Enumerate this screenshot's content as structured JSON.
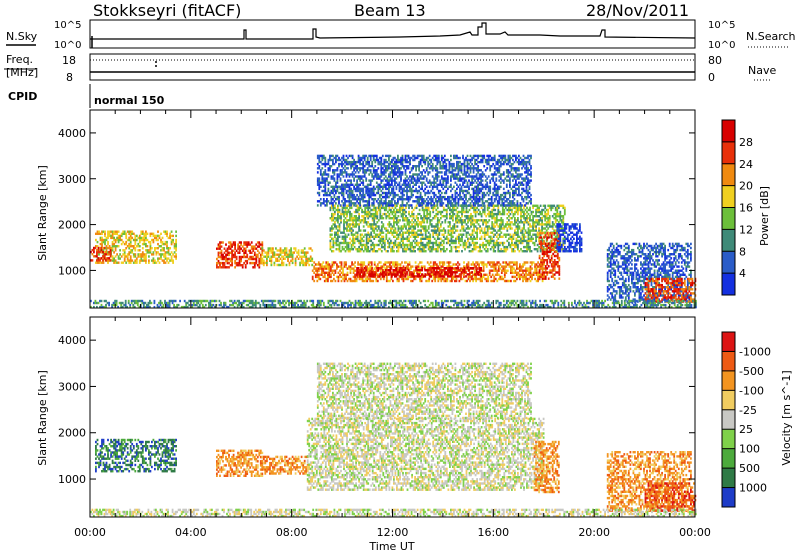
{
  "header": {
    "station": "Stokkseyri (fitACF)",
    "beam": "Beam 13",
    "date": "28/Nov/2011"
  },
  "panel_labels": {
    "nsky": "N.Sky",
    "nsearch": "N.Search",
    "freq_line1": "Freq.",
    "freq_line2": "[MHz]",
    "nave": "Nave",
    "cpid_label": "CPID",
    "cpid_value": "normal 150",
    "nsky_ticks": [
      "10^5",
      "10^0"
    ],
    "nsearch_ticks": [
      "10^5",
      "10^0"
    ],
    "freq_ticks": [
      "18",
      "8"
    ],
    "nave_ticks": [
      "80",
      "0"
    ]
  },
  "chart_data": [
    {
      "type": "heatmap",
      "name": "power",
      "xlabel": "Time UT",
      "ylabel": "Slant Range [km]",
      "x_ticks": [
        "00:00",
        "04:00",
        "08:00",
        "12:00",
        "16:00",
        "20:00",
        "00:00"
      ],
      "xlim_hours": [
        0,
        24
      ],
      "ylim_km": [
        180,
        4500
      ],
      "y_ticks": [
        "1000",
        "2000",
        "3000",
        "4000"
      ],
      "y_tick_values": [
        1000,
        2000,
        3000,
        4000
      ],
      "colorbar": {
        "label": "Power [dB]",
        "tick_labels": [
          "4",
          "8",
          "12",
          "16",
          "20",
          "24",
          "28"
        ],
        "colors": [
          "#1430e0",
          "#2a5cc8",
          "#3f8a78",
          "#6cbf3a",
          "#f0d020",
          "#f08a10",
          "#e8300a",
          "#d80000"
        ]
      },
      "regions": [
        {
          "t": [
            0.2,
            3.4
          ],
          "r": [
            1150,
            1850
          ],
          "level": 4
        },
        {
          "t": [
            0.0,
            0.8
          ],
          "r": [
            1200,
            1500
          ],
          "level": 6
        },
        {
          "t": [
            5.0,
            6.8
          ],
          "r": [
            1050,
            1600
          ],
          "level": 6
        },
        {
          "t": [
            6.8,
            8.8
          ],
          "r": [
            1100,
            1500
          ],
          "level": 4
        },
        {
          "t": [
            8.8,
            18.0
          ],
          "r": [
            750,
            1200
          ],
          "level": 5
        },
        {
          "t": [
            10.5,
            15.5
          ],
          "r": [
            850,
            1050
          ],
          "level": 7
        },
        {
          "t": [
            9.5,
            18.8
          ],
          "r": [
            1400,
            2400
          ],
          "level": 3
        },
        {
          "t": [
            9.0,
            17.5
          ],
          "r": [
            2400,
            3500
          ],
          "level": 1
        },
        {
          "t": [
            17.8,
            18.6
          ],
          "r": [
            800,
            1800
          ],
          "level": 6
        },
        {
          "t": [
            18.5,
            19.5
          ],
          "r": [
            1400,
            2000
          ],
          "level": 0
        },
        {
          "t": [
            20.5,
            23.8
          ],
          "r": [
            300,
            1600
          ],
          "level": 1
        },
        {
          "t": [
            22.0,
            24.0
          ],
          "r": [
            300,
            800
          ],
          "level": 6
        },
        {
          "t": [
            0.0,
            24.0
          ],
          "r": [
            180,
            330
          ],
          "level": 2
        }
      ]
    },
    {
      "type": "heatmap",
      "name": "velocity",
      "xlabel": "Time UT",
      "ylabel": "Slant Range [km]",
      "x_ticks": [
        "00:00",
        "04:00",
        "08:00",
        "12:00",
        "16:00",
        "20:00",
        "00:00"
      ],
      "xlim_hours": [
        0,
        24
      ],
      "ylim_km": [
        180,
        4500
      ],
      "y_ticks": [
        "1000",
        "2000",
        "3000",
        "4000"
      ],
      "y_tick_values": [
        1000,
        2000,
        3000,
        4000
      ],
      "colorbar": {
        "label": "Velocity [m s^-1]",
        "tick_labels": [
          "1000",
          "500",
          "100",
          "25",
          "-25",
          "-100",
          "-500",
          "-1000"
        ],
        "colors": [
          "#1e3cc8",
          "#2f7a46",
          "#4caa3c",
          "#7fd14a",
          "#c8c8c4",
          "#f0cc60",
          "#f39420",
          "#ee5a14",
          "#dc1414"
        ]
      },
      "regions": [
        {
          "t": [
            0.2,
            3.4
          ],
          "r": [
            1150,
            1850
          ],
          "level": 1
        },
        {
          "t": [
            5.0,
            6.8
          ],
          "r": [
            1050,
            1600
          ],
          "level": 6
        },
        {
          "t": [
            6.8,
            8.6
          ],
          "r": [
            1100,
            1500
          ],
          "level": 6
        },
        {
          "t": [
            8.6,
            18.0
          ],
          "r": [
            750,
            2300
          ],
          "level": 4
        },
        {
          "t": [
            9.0,
            17.5
          ],
          "r": [
            2300,
            3500
          ],
          "level": 4
        },
        {
          "t": [
            17.6,
            18.6
          ],
          "r": [
            700,
            1800
          ],
          "level": 6
        },
        {
          "t": [
            20.5,
            23.8
          ],
          "r": [
            300,
            1600
          ],
          "level": 6
        },
        {
          "t": [
            22.0,
            24.0
          ],
          "r": [
            300,
            900
          ],
          "level": 7
        },
        {
          "t": [
            0.0,
            24.0
          ],
          "r": [
            180,
            330
          ],
          "level": 4
        }
      ]
    }
  ]
}
